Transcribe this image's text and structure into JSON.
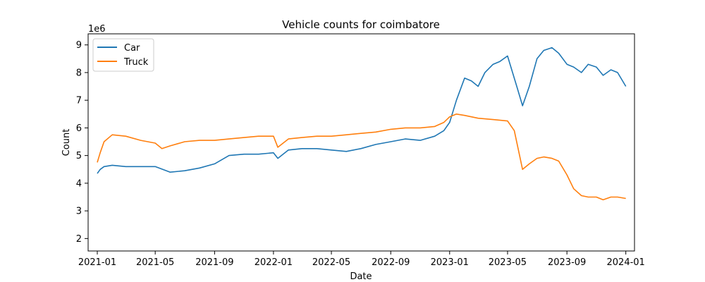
{
  "chart_data": {
    "type": "line",
    "title": "Vehicle counts for coimbatore",
    "xlabel": "Date",
    "ylabel": "Count",
    "y_scale_label": "1e6",
    "xlim": [
      "2020-12-13",
      "2024-01-19"
    ],
    "ylim": [
      1.55,
      9.4
    ],
    "x_ticks": [
      "2021-01",
      "2021-05",
      "2021-09",
      "2022-01",
      "2022-05",
      "2022-09",
      "2023-01",
      "2023-05",
      "2023-09",
      "2024-01"
    ],
    "y_ticks": [
      2,
      3,
      4,
      5,
      6,
      7,
      8,
      9
    ],
    "grid": false,
    "legend_position": "upper-left",
    "series": [
      {
        "name": "Car",
        "color": "#1f77b4",
        "dates": [
          "2021-01-01",
          "2021-01-07",
          "2021-01-15",
          "2021-02-01",
          "2021-03-01",
          "2021-04-01",
          "2021-05-01",
          "2021-06-01",
          "2021-07-01",
          "2021-08-01",
          "2021-09-01",
          "2021-10-01",
          "2021-11-01",
          "2021-12-01",
          "2022-01-01",
          "2022-01-10",
          "2022-02-01",
          "2022-03-01",
          "2022-04-01",
          "2022-05-01",
          "2022-06-01",
          "2022-07-01",
          "2022-08-01",
          "2022-09-01",
          "2022-10-01",
          "2022-11-01",
          "2022-12-01",
          "2022-12-20",
          "2023-01-01",
          "2023-01-15",
          "2023-02-01",
          "2023-02-15",
          "2023-03-01",
          "2023-03-15",
          "2023-04-01",
          "2023-04-15",
          "2023-05-01",
          "2023-05-20",
          "2023-06-01",
          "2023-06-15",
          "2023-07-01",
          "2023-07-15",
          "2023-08-01",
          "2023-08-15",
          "2023-09-01",
          "2023-09-15",
          "2023-10-01",
          "2023-10-15",
          "2023-11-01",
          "2023-11-15",
          "2023-12-01",
          "2023-12-15",
          "2024-01-01"
        ],
        "values": [
          4.35,
          4.5,
          4.6,
          4.65,
          4.6,
          4.6,
          4.6,
          4.4,
          4.45,
          4.55,
          4.7,
          5.0,
          5.05,
          5.05,
          5.1,
          4.9,
          5.2,
          5.25,
          5.25,
          5.2,
          5.15,
          5.25,
          5.4,
          5.5,
          5.6,
          5.55,
          5.7,
          5.9,
          6.2,
          7.0,
          7.8,
          7.7,
          7.5,
          8.0,
          8.3,
          8.4,
          8.6,
          7.5,
          6.8,
          7.5,
          8.5,
          8.8,
          8.9,
          8.7,
          8.3,
          8.2,
          8.0,
          8.3,
          8.2,
          7.9,
          8.1,
          8.0,
          7.5
        ]
      },
      {
        "name": "Truck",
        "color": "#ff7f0e",
        "dates": [
          "2021-01-01",
          "2021-01-07",
          "2021-01-15",
          "2021-02-01",
          "2021-03-01",
          "2021-04-01",
          "2021-05-01",
          "2021-05-15",
          "2021-06-01",
          "2021-07-01",
          "2021-08-01",
          "2021-09-01",
          "2021-10-01",
          "2021-11-01",
          "2021-12-01",
          "2022-01-01",
          "2022-01-10",
          "2022-02-01",
          "2022-03-01",
          "2022-04-01",
          "2022-05-01",
          "2022-06-01",
          "2022-07-01",
          "2022-08-01",
          "2022-09-01",
          "2022-10-01",
          "2022-11-01",
          "2022-12-01",
          "2022-12-20",
          "2023-01-01",
          "2023-01-15",
          "2023-02-01",
          "2023-02-15",
          "2023-03-01",
          "2023-04-01",
          "2023-05-01",
          "2023-05-15",
          "2023-06-01",
          "2023-06-15",
          "2023-07-01",
          "2023-07-15",
          "2023-08-01",
          "2023-08-15",
          "2023-09-01",
          "2023-09-15",
          "2023-10-01",
          "2023-10-15",
          "2023-11-01",
          "2023-11-15",
          "2023-12-01",
          "2023-12-15",
          "2024-01-01"
        ],
        "values": [
          4.75,
          5.1,
          5.5,
          5.75,
          5.7,
          5.55,
          5.45,
          5.25,
          5.35,
          5.5,
          5.55,
          5.55,
          5.6,
          5.65,
          5.7,
          5.7,
          5.3,
          5.6,
          5.65,
          5.7,
          5.7,
          5.75,
          5.8,
          5.85,
          5.95,
          6.0,
          6.0,
          6.05,
          6.2,
          6.4,
          6.5,
          6.45,
          6.4,
          6.35,
          6.3,
          6.25,
          5.9,
          4.5,
          4.7,
          4.9,
          4.95,
          4.9,
          4.8,
          4.3,
          3.8,
          3.55,
          3.5,
          3.5,
          3.4,
          3.5,
          3.5,
          3.45
        ]
      }
    ]
  }
}
